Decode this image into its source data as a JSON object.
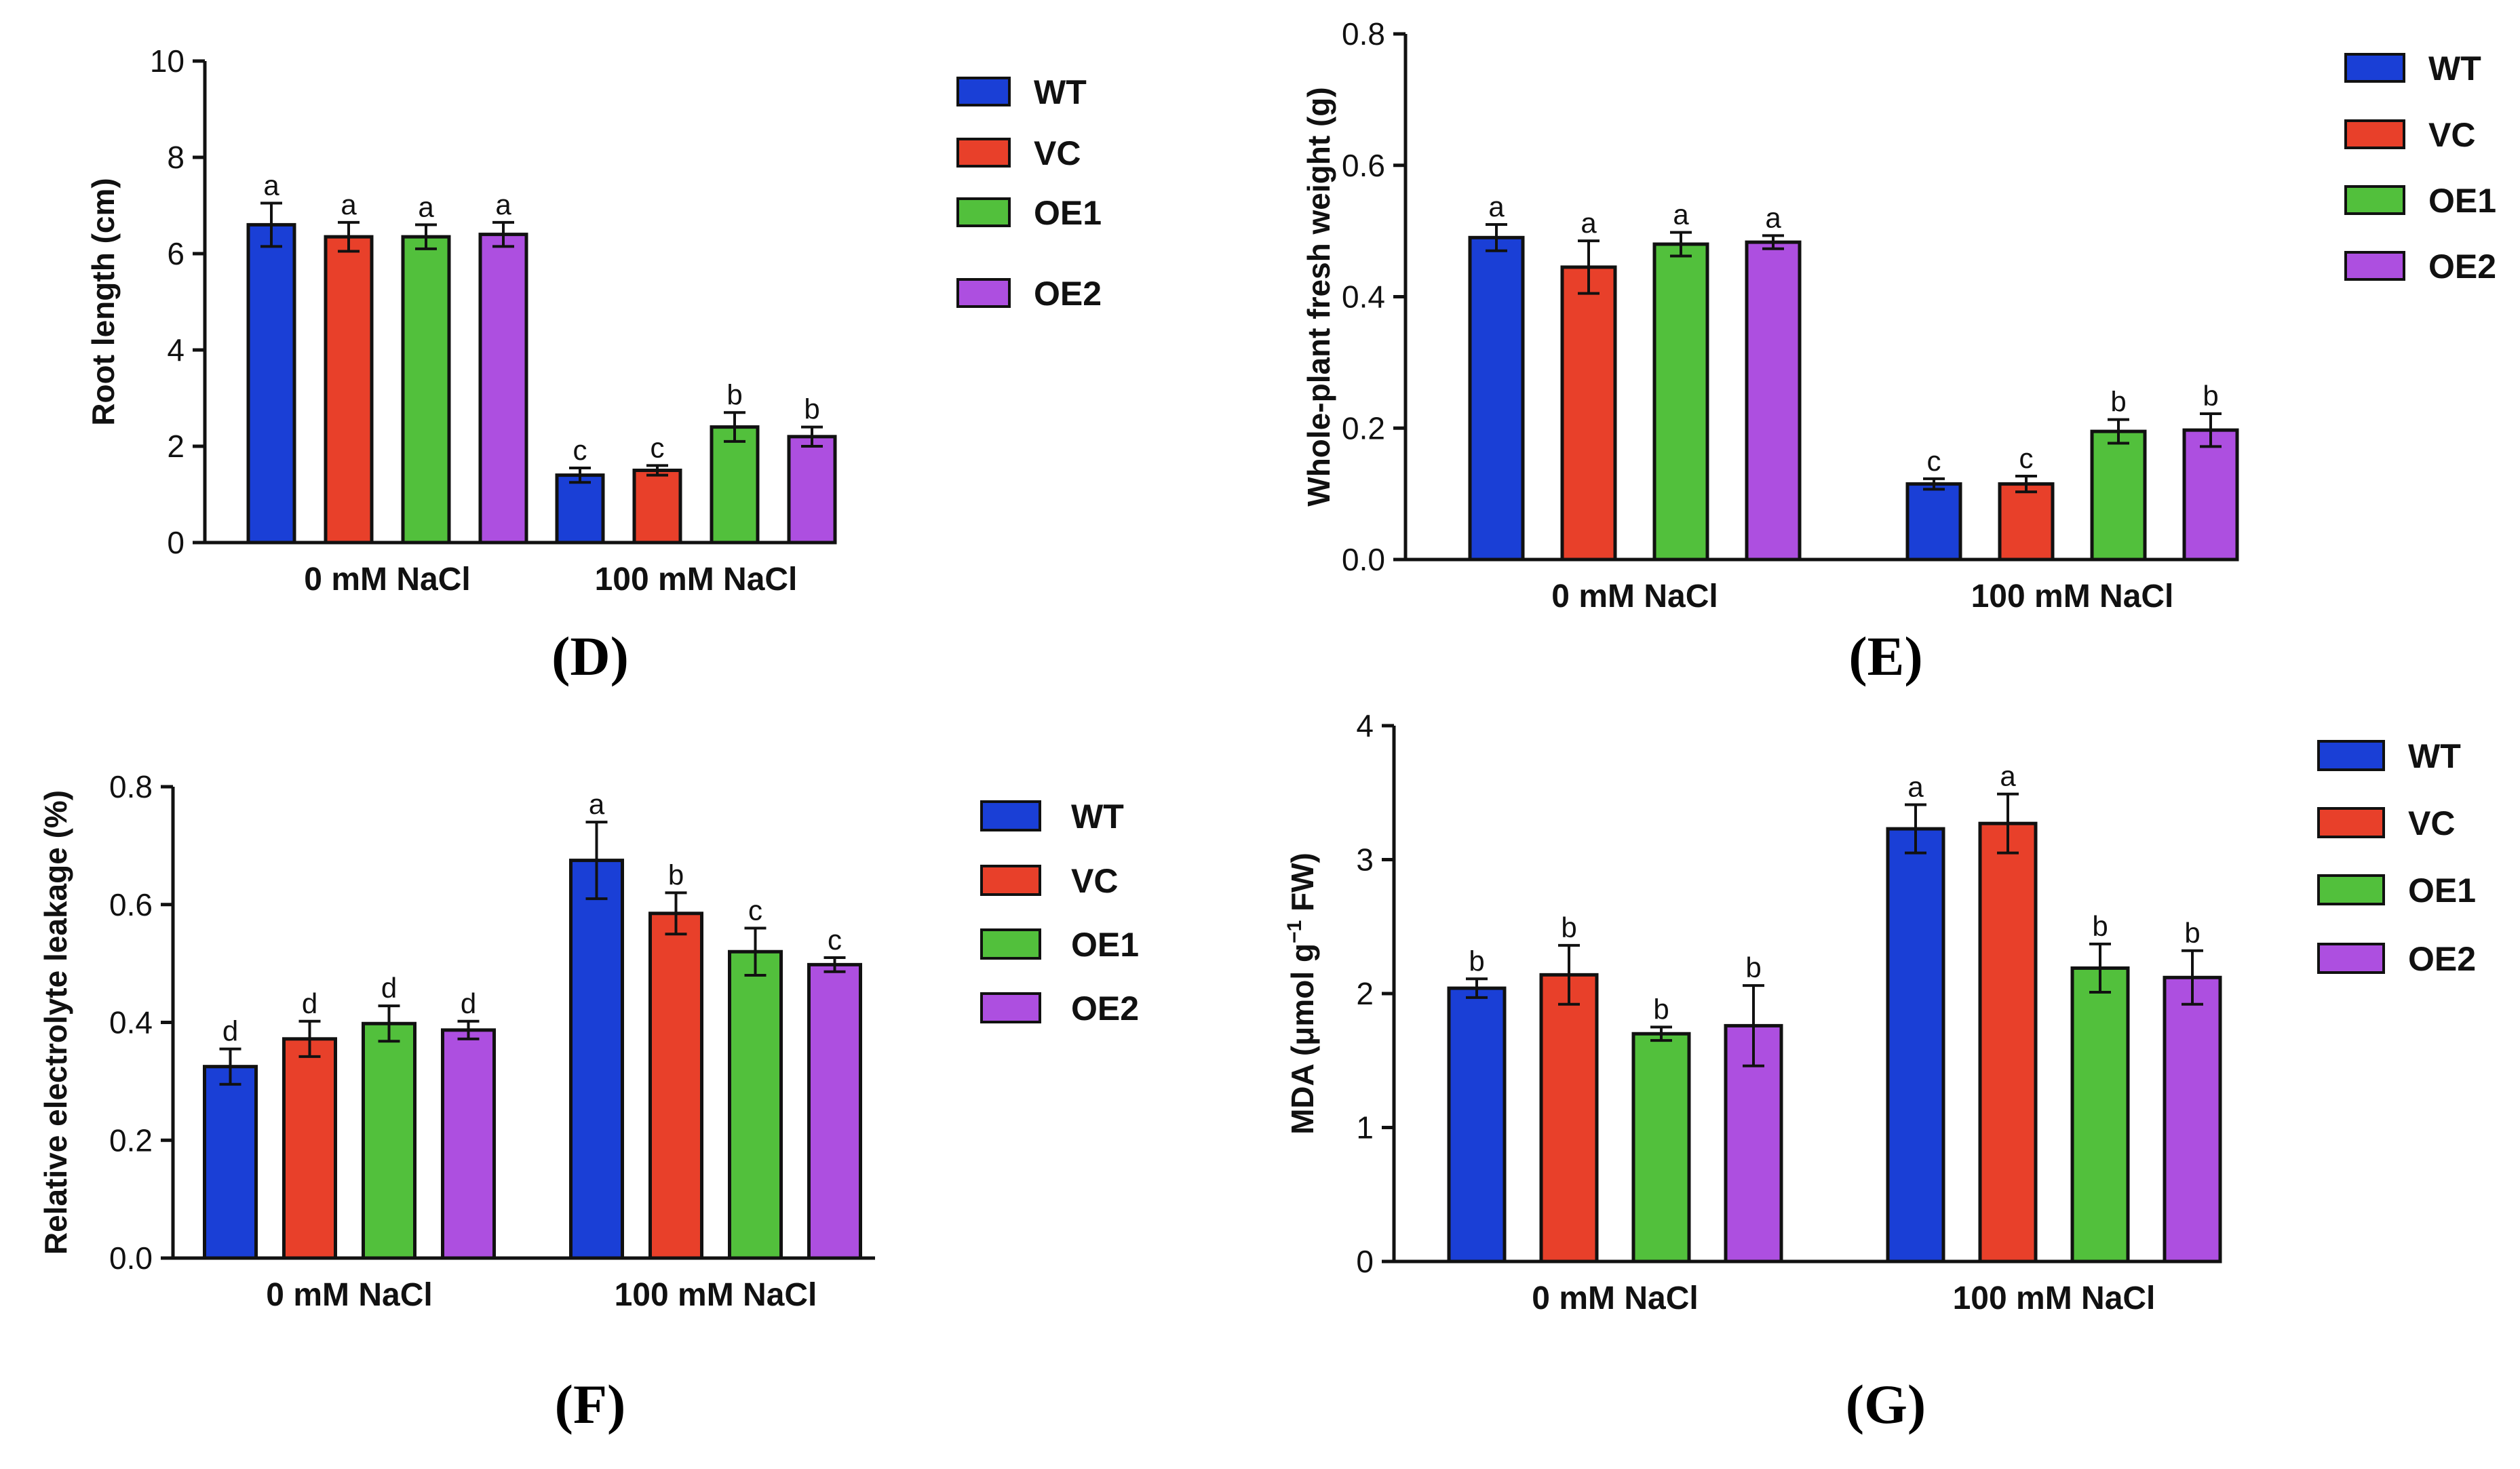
{
  "legend": [
    {
      "name": "WT",
      "color": "#1a3fd6"
    },
    {
      "name": "VC",
      "color": "#e8402a"
    },
    {
      "name": "OE1",
      "color": "#52c03c"
    },
    {
      "name": "OE2",
      "color": "#ad4fe0"
    }
  ],
  "chart_data": [
    {
      "id": "D",
      "type": "bar",
      "panel_label": "(D)",
      "ylabel": "Root length (cm)",
      "ylim": [
        0,
        10
      ],
      "yticks": [
        "0",
        "2",
        "4",
        "6",
        "8",
        "10"
      ],
      "categories": [
        "0 mM NaCl",
        "100 mM NaCl"
      ],
      "series": [
        {
          "name": "WT",
          "values": [
            6.6,
            1.4
          ],
          "errors": [
            0.45,
            0.15
          ],
          "letters": [
            "a",
            "c"
          ]
        },
        {
          "name": "VC",
          "values": [
            6.35,
            1.5
          ],
          "errors": [
            0.3,
            0.1
          ],
          "letters": [
            "a",
            "c"
          ]
        },
        {
          "name": "OE1",
          "values": [
            6.35,
            2.4
          ],
          "errors": [
            0.25,
            0.3
          ],
          "letters": [
            "a",
            "b"
          ]
        },
        {
          "name": "OE2",
          "values": [
            6.4,
            2.2
          ],
          "errors": [
            0.25,
            0.2
          ],
          "letters": [
            "a",
            "b"
          ]
        }
      ]
    },
    {
      "id": "E",
      "type": "bar",
      "panel_label": "(E)",
      "ylabel": "Whole-plant fresh weight (g)",
      "ylim": [
        0,
        0.8
      ],
      "yticks": [
        "0.0",
        "0.2",
        "0.4",
        "0.6",
        "0.8"
      ],
      "categories": [
        "0 mM NaCl",
        "100 mM NaCl"
      ],
      "series": [
        {
          "name": "WT",
          "values": [
            0.49,
            0.115
          ],
          "errors": [
            0.02,
            0.008
          ],
          "letters": [
            "a",
            "c"
          ]
        },
        {
          "name": "VC",
          "values": [
            0.445,
            0.115
          ],
          "errors": [
            0.04,
            0.012
          ],
          "letters": [
            "a",
            "c"
          ]
        },
        {
          "name": "OE1",
          "values": [
            0.48,
            0.195
          ],
          "errors": [
            0.018,
            0.018
          ],
          "letters": [
            "a",
            "b"
          ]
        },
        {
          "name": "OE2",
          "values": [
            0.483,
            0.197
          ],
          "errors": [
            0.01,
            0.025
          ],
          "letters": [
            "a",
            "b"
          ]
        }
      ]
    },
    {
      "id": "F",
      "type": "bar",
      "panel_label": "(F)",
      "ylabel": "Relative electrolyte leakage (%)",
      "ylim": [
        0,
        0.8
      ],
      "yticks": [
        "0.0",
        "0.2",
        "0.4",
        "0.6",
        "0.8"
      ],
      "categories": [
        "0 mM NaCl",
        "100 mM NaCl"
      ],
      "series": [
        {
          "name": "WT",
          "values": [
            0.325,
            0.675
          ],
          "errors": [
            0.03,
            0.065
          ],
          "letters": [
            "d",
            "a"
          ]
        },
        {
          "name": "VC",
          "values": [
            0.372,
            0.585
          ],
          "errors": [
            0.03,
            0.035
          ],
          "letters": [
            "d",
            "b"
          ]
        },
        {
          "name": "OE1",
          "values": [
            0.398,
            0.52
          ],
          "errors": [
            0.03,
            0.04
          ],
          "letters": [
            "d",
            "c"
          ]
        },
        {
          "name": "OE2",
          "values": [
            0.387,
            0.498
          ],
          "errors": [
            0.015,
            0.012
          ],
          "letters": [
            "d",
            "c"
          ]
        }
      ]
    },
    {
      "id": "G",
      "type": "bar",
      "panel_label": "(G)",
      "ylabel_main": "MDA (μmol g",
      "ylabel_sup": "−1",
      "ylabel_end": " FW)",
      "ylim": [
        0,
        4
      ],
      "yticks": [
        "0",
        "1",
        "2",
        "3",
        "4"
      ],
      "categories": [
        "0 mM NaCl",
        "100 mM NaCl"
      ],
      "series": [
        {
          "name": "WT",
          "values": [
            2.04,
            3.23
          ],
          "errors": [
            0.07,
            0.18
          ],
          "letters": [
            "b",
            "a"
          ]
        },
        {
          "name": "VC",
          "values": [
            2.14,
            3.27
          ],
          "errors": [
            0.22,
            0.22
          ],
          "letters": [
            "b",
            "a"
          ]
        },
        {
          "name": "OE1",
          "values": [
            1.7,
            2.19
          ],
          "errors": [
            0.05,
            0.18
          ],
          "letters": [
            "b",
            "b"
          ]
        },
        {
          "name": "OE2",
          "values": [
            1.76,
            2.12
          ],
          "errors": [
            0.3,
            0.2
          ],
          "letters": [
            "b",
            "b"
          ]
        }
      ]
    }
  ]
}
